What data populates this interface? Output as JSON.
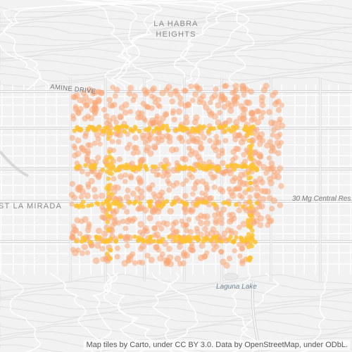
{
  "map": {
    "labels": {
      "la_habra_heights": "LA HABRA\nHEIGHTS",
      "la_mirada": "ST LA MIRADA",
      "imperial": "AMINE DRIVE",
      "central_res": "30 Mg Central Res",
      "laguna_lake": "Laguna Lake"
    },
    "attribution": "Map tiles by Carto, under CC BY 3.0. Data by OpenStreetMap, under ODbL.",
    "colors": {
      "background": "#f2f2f2",
      "street": "#ffffff",
      "major_road": "#d8d8d8",
      "dot_light": "#f9a574",
      "dot_bright": "#ffc233",
      "water_label": "#6f8796"
    },
    "heatmap": {
      "description_hidden": false,
      "corridors": [
        {
          "orientation": "horizontal",
          "level": "high"
        },
        {
          "orientation": "horizontal",
          "level": "high"
        },
        {
          "orientation": "horizontal",
          "level": "medium"
        },
        {
          "orientation": "horizontal",
          "level": "high"
        }
      ]
    }
  }
}
